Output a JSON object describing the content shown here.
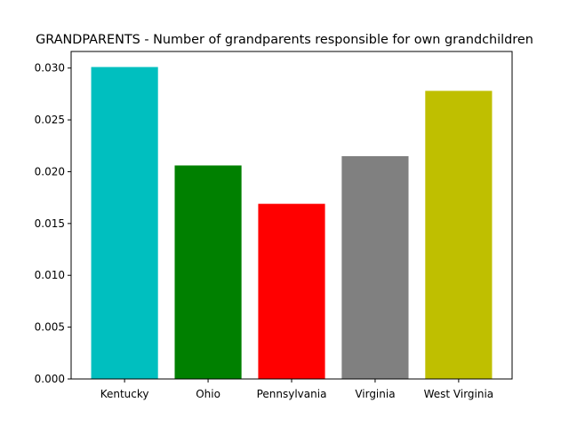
{
  "chart_data": {
    "type": "bar",
    "title": "GRANDPARENTS - Number of grandparents responsible for own grandchildren",
    "xlabel": "",
    "ylabel": "",
    "categories": [
      "Kentucky",
      "Ohio",
      "Pennsylvania",
      "Virginia",
      "West Virginia"
    ],
    "values": [
      0.0301,
      0.0206,
      0.0169,
      0.0215,
      0.0278
    ],
    "colors": [
      "#00bfbf",
      "#008000",
      "#ff0000",
      "#808080",
      "#bfbf00"
    ],
    "ylim": [
      0,
      0.0316
    ],
    "yticks": [
      0.0,
      0.005,
      0.01,
      0.015,
      0.02,
      0.025,
      0.03
    ],
    "ytick_labels": [
      "0.000",
      "0.005",
      "0.010",
      "0.015",
      "0.020",
      "0.025",
      "0.030"
    ],
    "grid": false,
    "legend": "none"
  }
}
